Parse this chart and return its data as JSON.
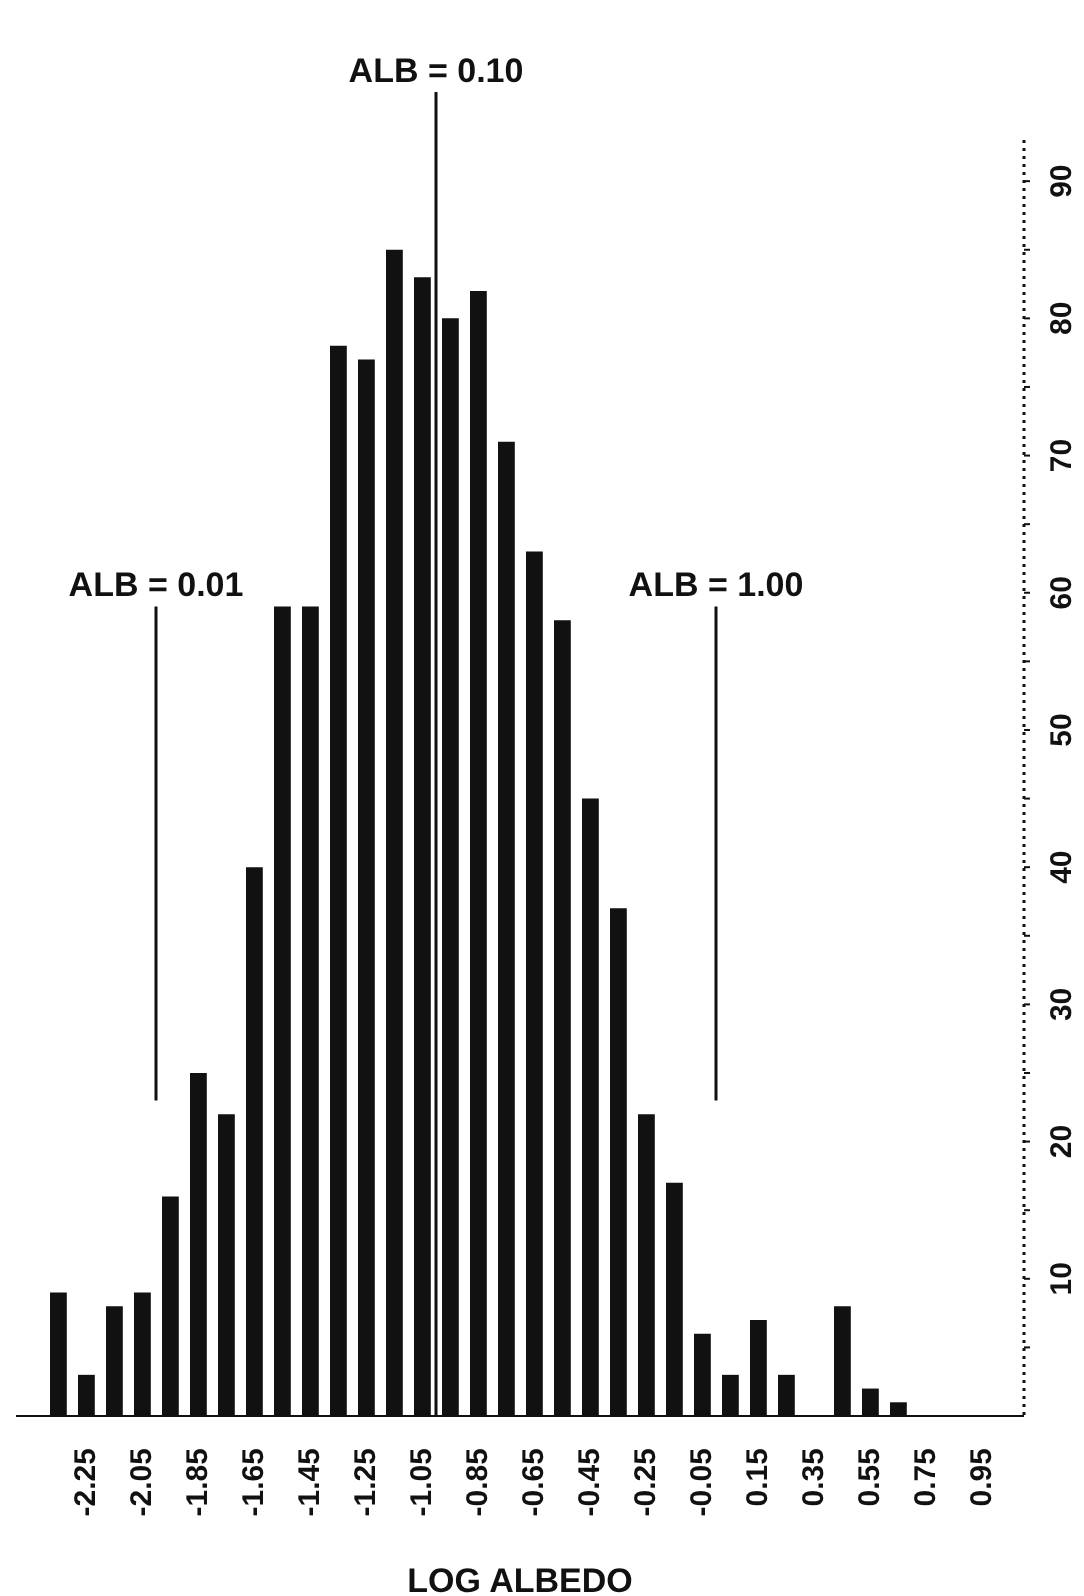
{
  "chart_data": {
    "type": "histogram",
    "xlabel": "LOG ALBEDO",
    "bins": [
      -2.4,
      -2.3,
      -2.2,
      -2.1,
      -2.0,
      -1.9,
      -1.8,
      -1.7,
      -1.6,
      -1.5,
      -1.4,
      -1.3,
      -1.2,
      -1.1,
      -1.0,
      -0.9,
      -0.8,
      -0.7,
      -0.6,
      -0.5,
      -0.4,
      -0.3,
      -0.2,
      -0.1,
      0.0,
      0.1,
      0.2,
      0.3,
      0.4,
      0.5,
      0.6,
      0.7
    ],
    "values": [
      9,
      3,
      8,
      9,
      16,
      25,
      22,
      40,
      59,
      59,
      78,
      77,
      85,
      83,
      80,
      82,
      71,
      63,
      58,
      45,
      37,
      22,
      17,
      6,
      3,
      7,
      3,
      0,
      8,
      2,
      1
    ],
    "color": "#111111",
    "xlim": [
      -2.5,
      1.1
    ],
    "xticks": [
      -2.25,
      -2.05,
      -1.85,
      -1.65,
      -1.45,
      -1.25,
      -1.05,
      -0.85,
      -0.65,
      -0.45,
      -0.25,
      -0.05,
      0.15,
      0.35,
      0.55,
      0.75,
      0.95
    ],
    "ylim": [
      0,
      93
    ],
    "yticks": [
      {
        "value": 5,
        "label": null
      },
      10,
      {
        "value": 15,
        "label": null
      },
      20,
      {
        "value": 25,
        "label": null
      },
      30,
      {
        "value": 35,
        "label": null
      },
      40,
      {
        "value": 45,
        "label": null
      },
      50,
      {
        "value": 55,
        "label": null
      },
      60,
      {
        "value": 65,
        "label": null
      },
      70,
      {
        "value": 75,
        "label": null
      },
      80,
      {
        "value": 85,
        "label": null
      },
      90
    ],
    "grid": false,
    "legend": false,
    "annotations": [
      "ALB = 0.01",
      "ALB = 0.10",
      "ALB = 1.00"
    ],
    "ref_lines": [
      {
        "axis": "x",
        "value": -2.0
      },
      {
        "axis": "x",
        "value": -1.0
      },
      {
        "axis": "x",
        "value": 0.0
      }
    ]
  }
}
